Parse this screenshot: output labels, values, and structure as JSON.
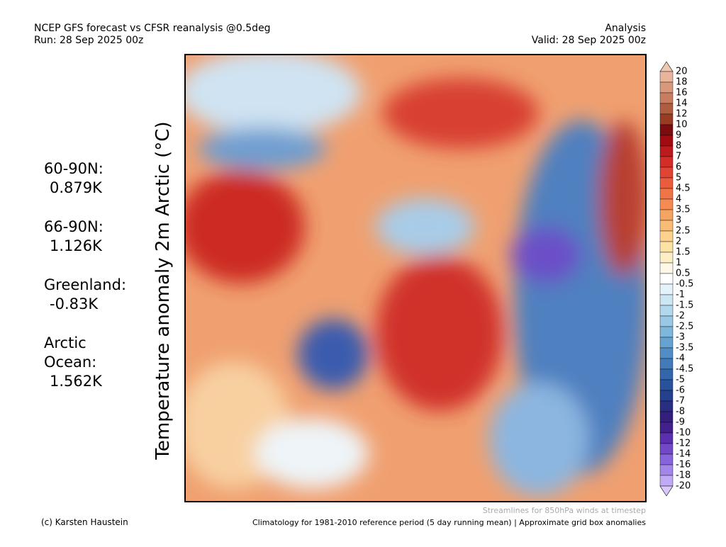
{
  "header": {
    "left": [
      "NCEP GFS forecast vs CFSR reanalysis @0.5deg",
      "Run: 28 Sep 2025 00z"
    ],
    "right": [
      "Analysis",
      "Valid: 28 Sep 2025 00z"
    ]
  },
  "y_label": "Temperature anomaly 2m Arctic (°C)",
  "stats": [
    {
      "lines": [
        "60-90N:"
      ],
      "value": "0.879K"
    },
    {
      "lines": [
        "66-90N:"
      ],
      "value": "1.126K"
    },
    {
      "lines": [
        "Greenland:"
      ],
      "value": "-0.83K"
    },
    {
      "lines": [
        "Arctic",
        "Ocean:"
      ],
      "value": "1.562K"
    }
  ],
  "colorbar": {
    "labels": [
      "20",
      "18",
      "16",
      "14",
      "12",
      "10",
      "9",
      "8",
      "7",
      "6",
      "5",
      "4.5",
      "4",
      "3.5",
      "3",
      "2.5",
      "2",
      "1.5",
      "1",
      "0.5",
      "-0.5",
      "-1",
      "-1.5",
      "-2",
      "-2.5",
      "-3",
      "-3.5",
      "-4",
      "-4.5",
      "-5",
      "-6",
      "-7",
      "-8",
      "-9",
      "-10",
      "-12",
      "-14",
      "-16",
      "-18",
      "-20"
    ],
    "top_color": "#f0c8b0",
    "bottom_color": "#d8c8f8",
    "colors": [
      "#e8b49c",
      "#d8987c",
      "#c87c60",
      "#b05c40",
      "#983c24",
      "#7c0c10",
      "#a00c12",
      "#bc1a1c",
      "#d42c28",
      "#e24434",
      "#ea5c3c",
      "#f07446",
      "#f48c52",
      "#f6a462",
      "#f8bc74",
      "#fcd28c",
      "#fde2a6",
      "#feeec6",
      "#fff8e6",
      "#ffffff",
      "#e4f2fa",
      "#cce6f4",
      "#b2d8ee",
      "#98c8e6",
      "#7eb6dc",
      "#66a2d2",
      "#528ec6",
      "#427aba",
      "#3466ac",
      "#28529e",
      "#24408e",
      "#2a2e82",
      "#34207c",
      "#42208e",
      "#5a30b0",
      "#7048c8",
      "#8864dc",
      "#a286ea",
      "#c0aaf6"
    ]
  },
  "footer": {
    "streamlines": "Streamlines for 850hPa winds at timestep",
    "copyright": "(c) Karsten Haustein",
    "climatology": "Climatology for 1981-2010 reference period (5 day running mean) | Approximate grid box anomalies"
  }
}
